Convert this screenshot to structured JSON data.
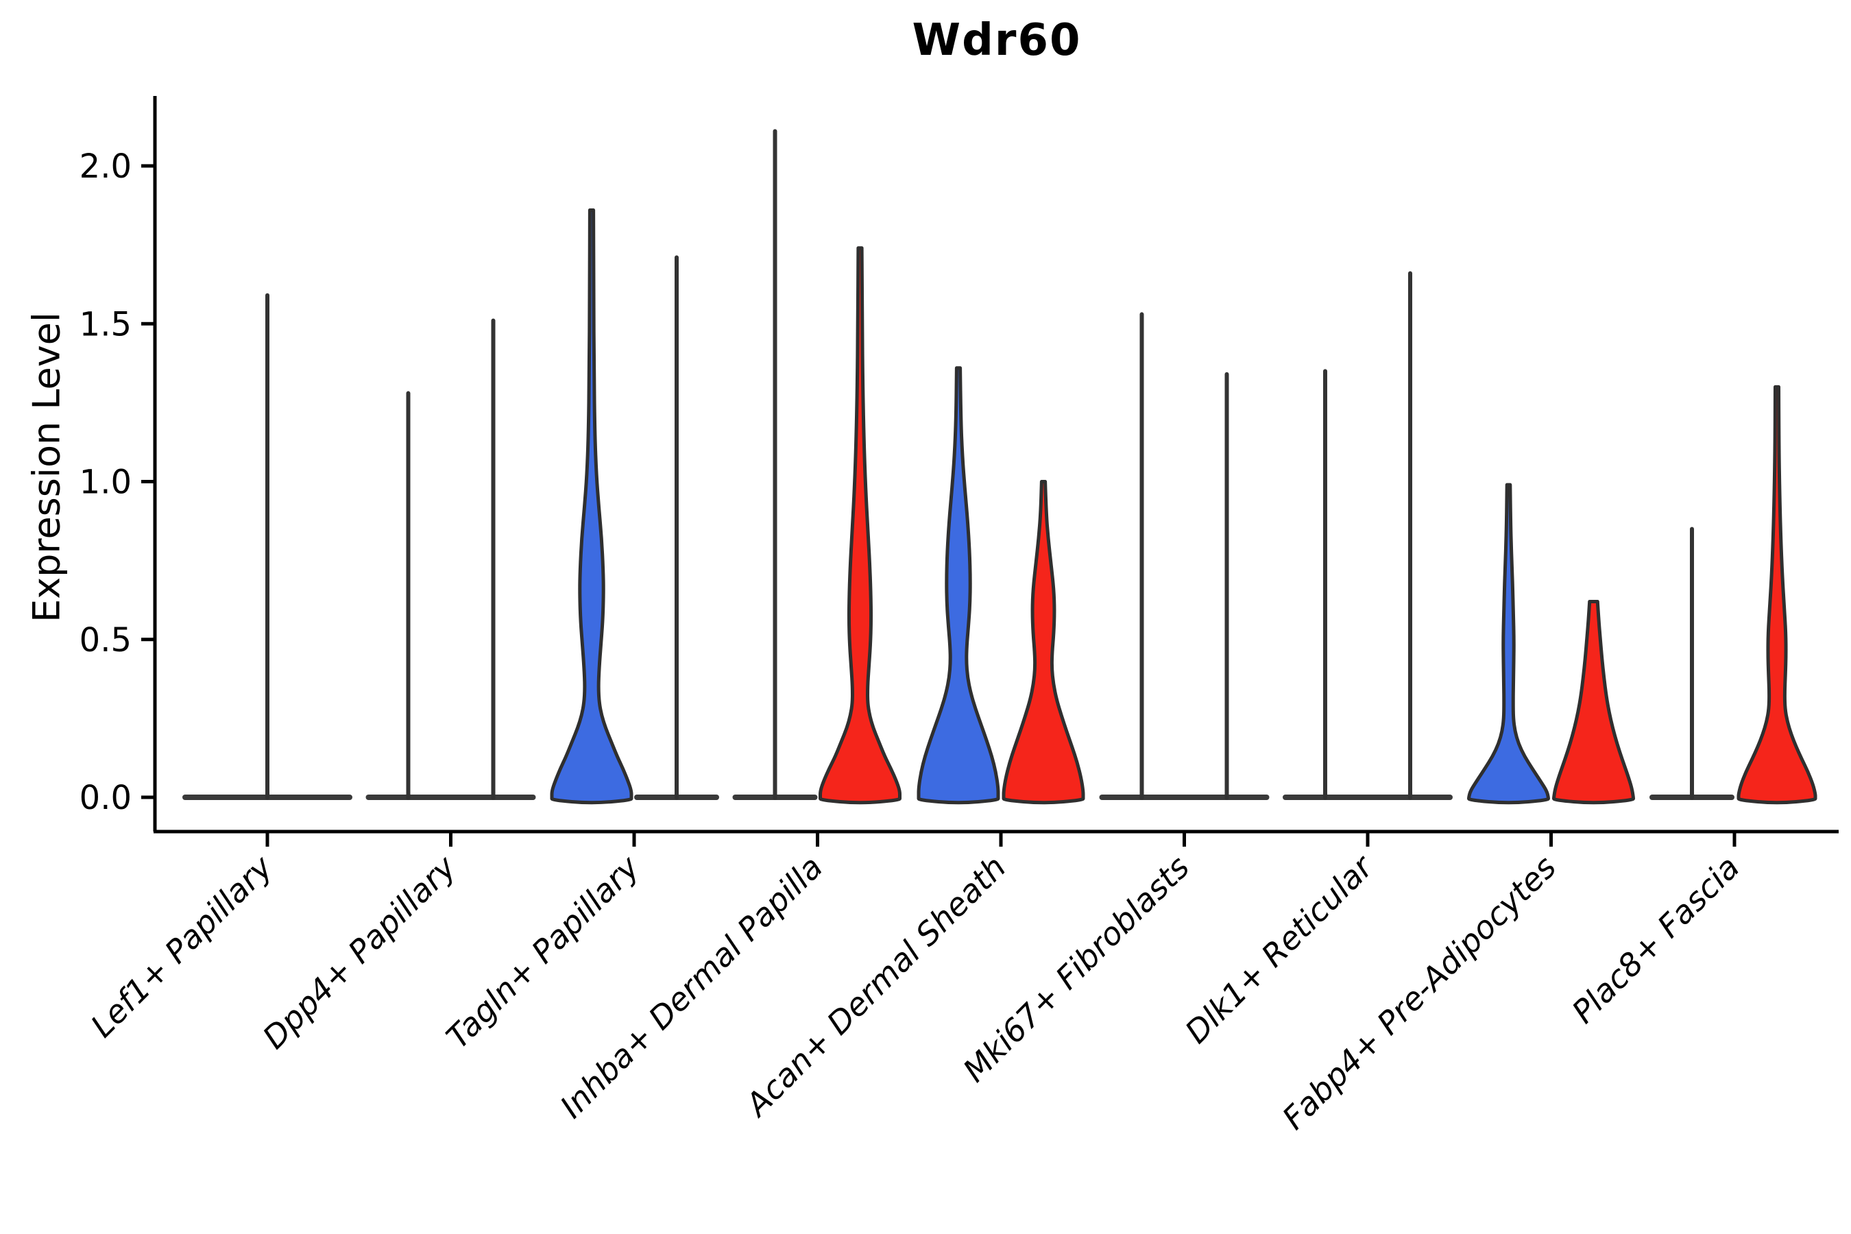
{
  "title": "Wdr60",
  "y_axis_label": "Expression Level",
  "style": {
    "blue": "#3D6BE1",
    "red": "#F5251B",
    "violin_outline": "#2F2F2F",
    "spike_line": "#333333",
    "baseline_bar": "#3A3A3A",
    "axis_color": "#000000",
    "text_color": "#000000"
  },
  "chart_data": {
    "type": "violin",
    "title": "Wdr60",
    "xlabel": "",
    "ylabel": "Expression Level",
    "y_ticks": [
      0.0,
      0.5,
      1.0,
      1.5,
      2.0
    ],
    "ylim": [
      -0.07,
      2.22
    ],
    "grid": false,
    "legend": "none",
    "categories": [
      "Lef1+ Papillary",
      "Dpp4+ Papillary",
      "Tagln+ Papillary",
      "Inhba+ Dermal Papilla",
      "Acan+ Dermal Sheath",
      "Mki67+ Fibroblasts",
      "Dlk1+ Reticular",
      "Fabp4+ Pre-Adipocytes",
      "Plac8+ Fascia"
    ],
    "series_colors": {
      "blue": "#3D6BE1",
      "red": "#F5251B"
    },
    "violins": [
      {
        "category_index": 0,
        "position": "center",
        "color": "none",
        "filled": false,
        "max_expression": 1.59
      },
      {
        "category_index": 1,
        "position": "left",
        "color": "none",
        "filled": false,
        "max_expression": 1.28
      },
      {
        "category_index": 1,
        "position": "right",
        "color": "none",
        "filled": false,
        "max_expression": 1.51
      },
      {
        "category_index": 2,
        "position": "left",
        "color": "blue",
        "filled": true,
        "max_expression": 1.86,
        "body": [
          [
            1.86,
            0.045
          ],
          [
            1.6,
            0.05
          ],
          [
            1.35,
            0.06
          ],
          [
            1.15,
            0.08
          ],
          [
            1.02,
            0.12
          ],
          [
            0.92,
            0.18
          ],
          [
            0.82,
            0.25
          ],
          [
            0.72,
            0.29
          ],
          [
            0.65,
            0.3
          ],
          [
            0.56,
            0.28
          ],
          [
            0.48,
            0.23
          ],
          [
            0.41,
            0.19
          ],
          [
            0.35,
            0.17
          ],
          [
            0.3,
            0.19
          ],
          [
            0.26,
            0.25
          ],
          [
            0.22,
            0.35
          ],
          [
            0.18,
            0.48
          ],
          [
            0.13,
            0.64
          ],
          [
            0.09,
            0.79
          ],
          [
            0.05,
            0.92
          ],
          [
            0.02,
            1.0
          ],
          [
            0.0,
            1.0
          ]
        ]
      },
      {
        "category_index": 2,
        "position": "right",
        "color": "none",
        "filled": false,
        "max_expression": 1.71
      },
      {
        "category_index": 3,
        "position": "left",
        "color": "none",
        "filled": false,
        "max_expression": 2.11
      },
      {
        "category_index": 3,
        "position": "right",
        "color": "red",
        "filled": true,
        "max_expression": 1.74,
        "body": [
          [
            1.74,
            0.045
          ],
          [
            1.5,
            0.055
          ],
          [
            1.3,
            0.07
          ],
          [
            1.12,
            0.1
          ],
          [
            0.98,
            0.14
          ],
          [
            0.86,
            0.19
          ],
          [
            0.75,
            0.24
          ],
          [
            0.65,
            0.27
          ],
          [
            0.56,
            0.28
          ],
          [
            0.48,
            0.26
          ],
          [
            0.41,
            0.22
          ],
          [
            0.35,
            0.19
          ],
          [
            0.3,
            0.19
          ],
          [
            0.26,
            0.24
          ],
          [
            0.22,
            0.33
          ],
          [
            0.18,
            0.46
          ],
          [
            0.13,
            0.62
          ],
          [
            0.09,
            0.78
          ],
          [
            0.05,
            0.92
          ],
          [
            0.02,
            1.0
          ],
          [
            0.0,
            1.0
          ]
        ]
      },
      {
        "category_index": 4,
        "position": "left",
        "color": "blue",
        "filled": true,
        "max_expression": 1.36,
        "body": [
          [
            1.36,
            0.045
          ],
          [
            1.2,
            0.06
          ],
          [
            1.08,
            0.1
          ],
          [
            0.98,
            0.16
          ],
          [
            0.88,
            0.23
          ],
          [
            0.78,
            0.28
          ],
          [
            0.69,
            0.3
          ],
          [
            0.61,
            0.29
          ],
          [
            0.54,
            0.25
          ],
          [
            0.48,
            0.21
          ],
          [
            0.43,
            0.2
          ],
          [
            0.38,
            0.23
          ],
          [
            0.33,
            0.31
          ],
          [
            0.28,
            0.43
          ],
          [
            0.23,
            0.57
          ],
          [
            0.18,
            0.71
          ],
          [
            0.13,
            0.84
          ],
          [
            0.08,
            0.94
          ],
          [
            0.03,
            1.0
          ],
          [
            0.0,
            1.0
          ]
        ]
      },
      {
        "category_index": 4,
        "position": "right",
        "color": "red",
        "filled": true,
        "max_expression": 1.0,
        "body": [
          [
            1.0,
            0.045
          ],
          [
            0.9,
            0.07
          ],
          [
            0.82,
            0.12
          ],
          [
            0.74,
            0.19
          ],
          [
            0.66,
            0.26
          ],
          [
            0.59,
            0.28
          ],
          [
            0.52,
            0.26
          ],
          [
            0.46,
            0.22
          ],
          [
            0.41,
            0.21
          ],
          [
            0.36,
            0.25
          ],
          [
            0.31,
            0.33
          ],
          [
            0.26,
            0.45
          ],
          [
            0.21,
            0.58
          ],
          [
            0.16,
            0.72
          ],
          [
            0.11,
            0.85
          ],
          [
            0.06,
            0.95
          ],
          [
            0.02,
            1.0
          ],
          [
            0.0,
            1.0
          ]
        ]
      },
      {
        "category_index": 5,
        "position": "left",
        "color": "none",
        "filled": false,
        "max_expression": 1.53
      },
      {
        "category_index": 5,
        "position": "right",
        "color": "none",
        "filled": false,
        "max_expression": 1.34
      },
      {
        "category_index": 6,
        "position": "left",
        "color": "none",
        "filled": false,
        "max_expression": 1.35
      },
      {
        "category_index": 6,
        "position": "right",
        "color": "none",
        "filled": false,
        "max_expression": 1.66
      },
      {
        "category_index": 7,
        "position": "left",
        "color": "blue",
        "filled": true,
        "max_expression": 0.99,
        "body": [
          [
            0.99,
            0.04
          ],
          [
            0.88,
            0.05
          ],
          [
            0.78,
            0.07
          ],
          [
            0.68,
            0.1
          ],
          [
            0.58,
            0.12
          ],
          [
            0.5,
            0.135
          ],
          [
            0.43,
            0.13
          ],
          [
            0.36,
            0.12
          ],
          [
            0.3,
            0.115
          ],
          [
            0.25,
            0.12
          ],
          [
            0.21,
            0.16
          ],
          [
            0.17,
            0.25
          ],
          [
            0.13,
            0.4
          ],
          [
            0.09,
            0.6
          ],
          [
            0.05,
            0.81
          ],
          [
            0.02,
            0.96
          ],
          [
            0.0,
            1.0
          ]
        ]
      },
      {
        "category_index": 7,
        "position": "right",
        "color": "red",
        "filled": true,
        "max_expression": 0.62,
        "body": [
          [
            0.62,
            0.1
          ],
          [
            0.56,
            0.13
          ],
          [
            0.5,
            0.17
          ],
          [
            0.44,
            0.21
          ],
          [
            0.38,
            0.26
          ],
          [
            0.32,
            0.32
          ],
          [
            0.27,
            0.39
          ],
          [
            0.22,
            0.48
          ],
          [
            0.17,
            0.59
          ],
          [
            0.12,
            0.72
          ],
          [
            0.07,
            0.86
          ],
          [
            0.03,
            0.96
          ],
          [
            0.0,
            1.0
          ]
        ]
      },
      {
        "category_index": 8,
        "position": "left",
        "color": "none",
        "filled": false,
        "max_expression": 0.85
      },
      {
        "category_index": 8,
        "position": "right",
        "color": "red",
        "filled": true,
        "max_expression": 1.3,
        "base_hw": 56,
        "body": [
          [
            1.3,
            0.045
          ],
          [
            1.12,
            0.05
          ],
          [
            0.96,
            0.07
          ],
          [
            0.82,
            0.1
          ],
          [
            0.7,
            0.14
          ],
          [
            0.6,
            0.19
          ],
          [
            0.52,
            0.23
          ],
          [
            0.45,
            0.235
          ],
          [
            0.39,
            0.22
          ],
          [
            0.33,
            0.2
          ],
          [
            0.28,
            0.21
          ],
          [
            0.24,
            0.27
          ],
          [
            0.2,
            0.37
          ],
          [
            0.16,
            0.5
          ],
          [
            0.12,
            0.65
          ],
          [
            0.08,
            0.81
          ],
          [
            0.04,
            0.94
          ],
          [
            0.01,
            1.0
          ],
          [
            0.0,
            1.0
          ]
        ]
      }
    ]
  }
}
